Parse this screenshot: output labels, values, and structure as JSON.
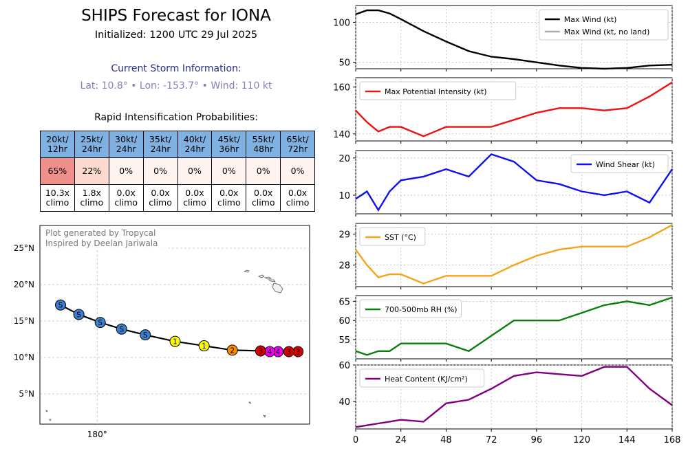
{
  "header": {
    "title": "SHIPS Forecast for IONA",
    "initialized": "Initialized: 1200 UTC 29 Jul 2025",
    "current_title": "Current Storm Information:",
    "current_info": "Lat: 10.8° • Lon: -153.7° • Wind: 110 kt"
  },
  "ri_table": {
    "title": "Rapid Intensification Probabilities:",
    "columns": [
      {
        "line1": "20kt/",
        "line2": "12hr",
        "prob": "65%",
        "climo1": "10.3x",
        "climo2": "climo",
        "color": "#f0908a"
      },
      {
        "line1": "25kt/",
        "line2": "24hr",
        "prob": "22%",
        "climo1": "1.8x",
        "climo2": "climo",
        "color": "#fbd9cf"
      },
      {
        "line1": "30kt/",
        "line2": "24hr",
        "prob": "0%",
        "climo1": "0.0x",
        "climo2": "climo",
        "color": "#fff4ef"
      },
      {
        "line1": "35kt/",
        "line2": "24hr",
        "prob": "0%",
        "climo1": "0.0x",
        "climo2": "climo",
        "color": "#fff4ef"
      },
      {
        "line1": "40kt/",
        "line2": "24hr",
        "prob": "0%",
        "climo1": "0.0x",
        "climo2": "climo",
        "color": "#fff4ef"
      },
      {
        "line1": "45kt/",
        "line2": "36hr",
        "prob": "0%",
        "climo1": "0.0x",
        "climo2": "climo",
        "color": "#fff4ef"
      },
      {
        "line1": "55kt/",
        "line2": "48hr",
        "prob": "0%",
        "climo1": "0.0x",
        "climo2": "climo",
        "color": "#fff4ef"
      },
      {
        "line1": "65kt/",
        "line2": "72hr",
        "prob": "0%",
        "climo1": "0.0x",
        "climo2": "climo",
        "color": "#fff4ef"
      }
    ]
  },
  "map": {
    "credit1": "Plot generated by Tropycal",
    "credit2": "Inspired by Deelan Jariwala",
    "lat_ticks": [
      {
        "value": 25,
        "label": "25°N"
      },
      {
        "value": 20,
        "label": "20°N"
      },
      {
        "value": 15,
        "label": "15°N"
      },
      {
        "value": 10,
        "label": "10°N"
      },
      {
        "value": 5,
        "label": "5°N"
      }
    ],
    "lon_ticks": [
      {
        "value": 180,
        "label": "180°"
      }
    ],
    "track": [
      {
        "lon": -153.7,
        "lat": 10.8,
        "cat": "3",
        "color": "#dd0000"
      },
      {
        "lon": -154.9,
        "lat": 10.8,
        "cat": "3",
        "color": "#dd0000"
      },
      {
        "lon": -156.3,
        "lat": 10.8,
        "cat": "4",
        "color": "#ee00ee"
      },
      {
        "lon": -157.4,
        "lat": 10.8,
        "cat": "4",
        "color": "#ee00ee"
      },
      {
        "lon": -158.6,
        "lat": 10.9,
        "cat": "3",
        "color": "#dd0000"
      },
      {
        "lon": -162.3,
        "lat": 11.0,
        "cat": "2",
        "color": "#ff8c00"
      },
      {
        "lon": -166.0,
        "lat": 11.6,
        "cat": "1",
        "color": "#ffff00"
      },
      {
        "lon": -169.8,
        "lat": 12.2,
        "cat": "1",
        "color": "#ffff00"
      },
      {
        "lon": -173.7,
        "lat": 13.1,
        "cat": "S",
        "color": "#3c7fd0"
      },
      {
        "lon": -176.8,
        "lat": 13.9,
        "cat": "S",
        "color": "#3c7fd0"
      },
      {
        "lon": -179.6,
        "lat": 14.8,
        "cat": "S",
        "color": "#3c7fd0"
      },
      {
        "lon": 177.6,
        "lat": 15.9,
        "cat": "S",
        "color": "#3c7fd0"
      },
      {
        "lon": 175.2,
        "lat": 17.2,
        "cat": "S",
        "color": "#3c7fd0"
      }
    ]
  },
  "chart_data": [
    {
      "type": "line",
      "x": [
        0,
        6,
        12,
        18,
        24,
        36,
        48,
        60,
        72,
        84,
        96,
        108,
        120,
        132,
        144,
        156,
        168
      ],
      "series": [
        {
          "name": "Max Wind (kt)",
          "color": "#000000",
          "values": [
            110,
            115,
            115,
            111,
            104,
            89,
            76,
            64,
            57,
            54,
            50,
            46,
            43,
            42,
            43,
            46,
            47
          ]
        }
      ],
      "legend_extra": [
        {
          "name": "Max Wind (kt, no land)",
          "color": "#aaaaaa"
        }
      ],
      "ylim": [
        42,
        121
      ],
      "yticks": [
        50,
        100
      ],
      "legend": "top-right"
    },
    {
      "type": "line",
      "x": [
        0,
        6,
        12,
        18,
        24,
        36,
        48,
        60,
        72,
        84,
        96,
        108,
        120,
        132,
        144,
        156,
        168
      ],
      "series": [
        {
          "name": "Max Potential Intensity (kt)",
          "color": "#ee1111",
          "values": [
            150,
            145,
            141,
            143,
            143,
            139,
            143,
            143,
            143,
            146,
            149,
            151,
            151,
            150,
            151,
            156,
            162
          ]
        }
      ],
      "ylim": [
        137,
        164
      ],
      "yticks": [
        140,
        160
      ],
      "legend": "top-left"
    },
    {
      "type": "line",
      "x": [
        0,
        6,
        12,
        18,
        24,
        36,
        48,
        60,
        72,
        84,
        96,
        108,
        120,
        132,
        144,
        156,
        168
      ],
      "series": [
        {
          "name": "Wind Shear (kt)",
          "color": "#1010ee",
          "values": [
            9,
            11,
            6,
            11,
            14,
            15,
            17,
            15,
            21,
            19,
            14,
            13,
            11,
            10,
            11,
            8,
            17
          ]
        }
      ],
      "ylim": [
        5,
        22
      ],
      "yticks": [
        10,
        20
      ],
      "legend": "top-right"
    },
    {
      "type": "line",
      "x": [
        0,
        6,
        12,
        18,
        24,
        36,
        48,
        60,
        72,
        84,
        96,
        108,
        120,
        132,
        144,
        156,
        168
      ],
      "series": [
        {
          "name": "SST (°C)",
          "color": "#f5a41a",
          "values": [
            28.5,
            28.0,
            27.6,
            27.7,
            27.7,
            27.4,
            27.65,
            27.65,
            27.65,
            28.0,
            28.3,
            28.5,
            28.6,
            28.6,
            28.6,
            28.9,
            29.3
          ]
        }
      ],
      "ylim": [
        27.3,
        29.35
      ],
      "yticks": [
        28,
        29
      ],
      "legend": "top-left"
    },
    {
      "type": "line",
      "x": [
        0,
        6,
        12,
        18,
        24,
        36,
        48,
        60,
        72,
        84,
        96,
        108,
        120,
        132,
        144,
        156,
        168
      ],
      "series": [
        {
          "name": "700-500mb RH (%)",
          "color": "#0a800a",
          "values": [
            52,
            51,
            52,
            52,
            54,
            54,
            54,
            52,
            56,
            60,
            60,
            60,
            62,
            64,
            65,
            64,
            66
          ]
        }
      ],
      "ylim": [
        50,
        66.5
      ],
      "yticks": [
        55,
        60,
        65
      ],
      "legend": "top-left"
    },
    {
      "type": "line",
      "x": [
        0,
        6,
        12,
        18,
        24,
        36,
        48,
        60,
        72,
        84,
        96,
        108,
        120,
        132,
        144,
        156,
        168
      ],
      "series": [
        {
          "name": "Heat Content (KJ/cm²)",
          "color": "#800080",
          "values": [
            26,
            27,
            28,
            29,
            30,
            29,
            39,
            41,
            47,
            54,
            56,
            55,
            54,
            59,
            59,
            47,
            38
          ]
        }
      ],
      "ylim": [
        25,
        60
      ],
      "yticks": [
        40,
        60
      ],
      "legend": "top-left",
      "xticks": [
        0,
        24,
        48,
        72,
        96,
        120,
        144,
        168
      ]
    }
  ]
}
